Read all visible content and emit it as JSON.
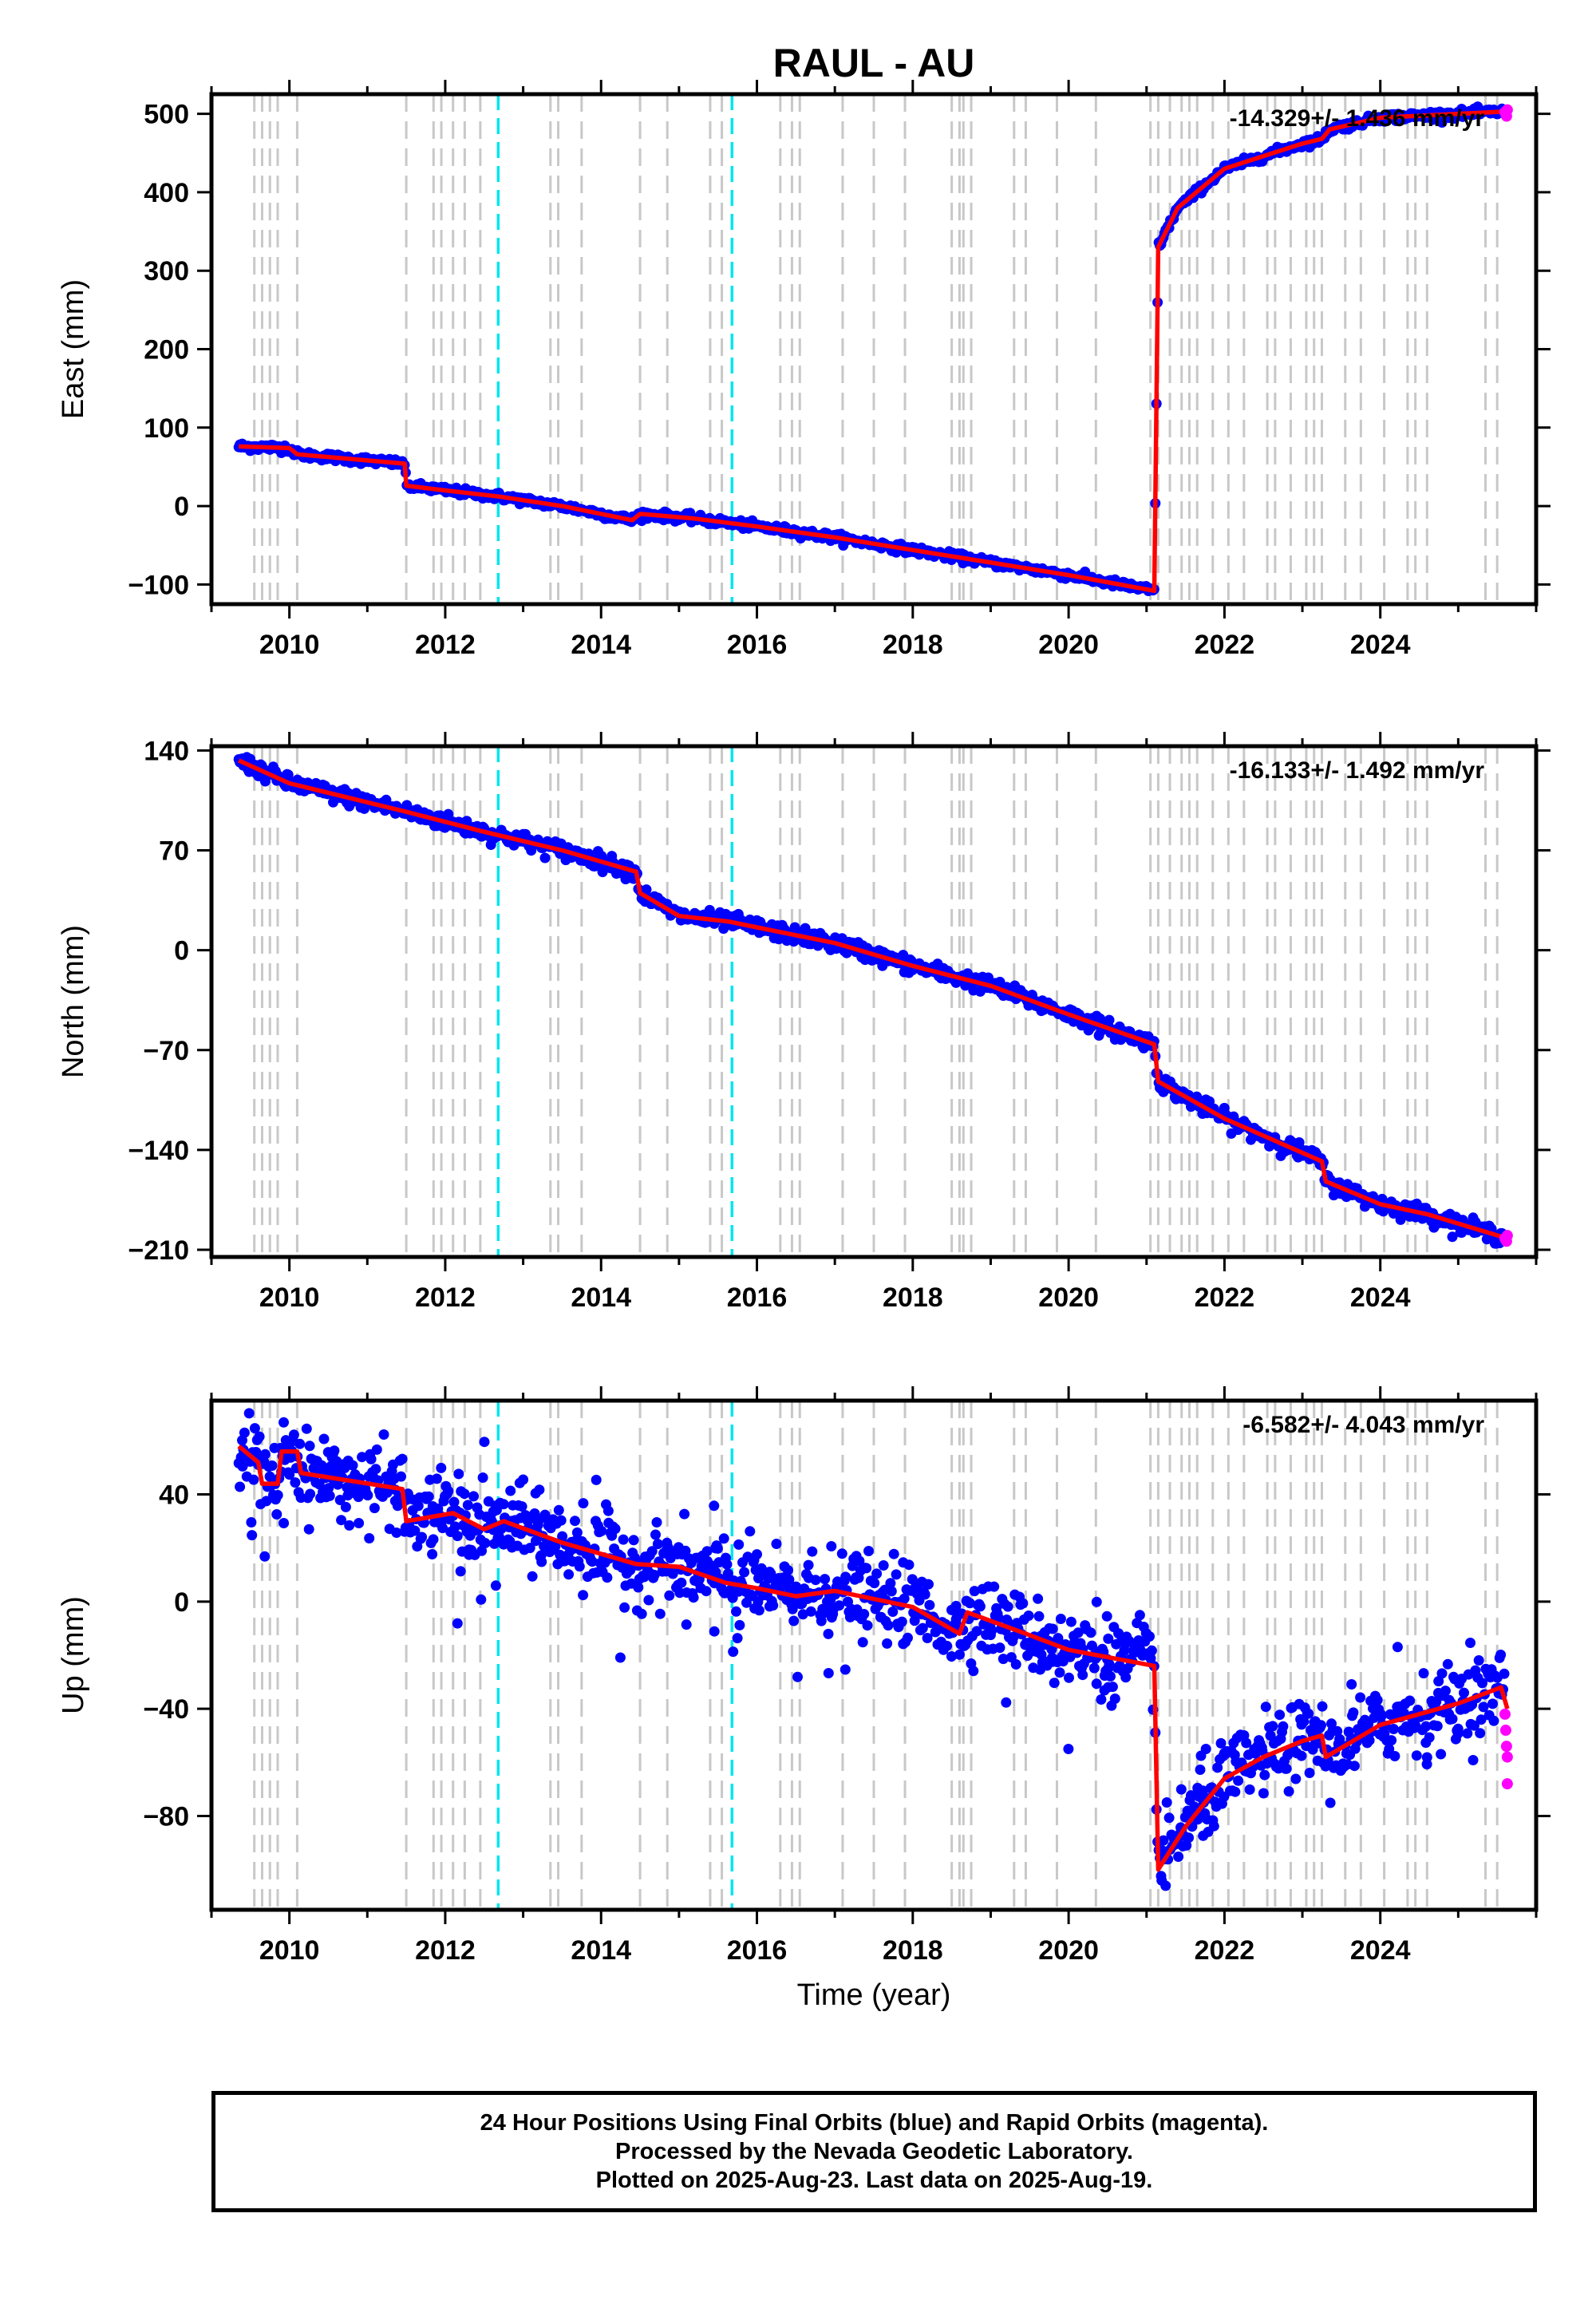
{
  "title": "RAUL - AU",
  "xlabel": "Time (year)",
  "footer": {
    "line1": "24 Hour Positions Using Final Orbits (blue) and Rapid Orbits (magenta).",
    "line2": "Processed by the Nevada Geodetic Laboratory.",
    "line3": "Plotted on 2025-Aug-23. Last data on 2025-Aug-19."
  },
  "colors": {
    "final_orbits": "#0000ff",
    "rapid_orbits": "#ff00ff",
    "model": "#ff0000",
    "equipment_change": "#c8c8c8",
    "earthquake": "#00e5ee"
  },
  "chart_data": {
    "type": "scatter",
    "xlim": [
      2009.0,
      2026.0
    ],
    "xticks": [
      2010,
      2012,
      2014,
      2016,
      2018,
      2020,
      2022,
      2024
    ],
    "xtick_labels": [
      "2010",
      "2012",
      "2014",
      "2016",
      "2018",
      "2020",
      "2022",
      "2024"
    ],
    "data_start": 2009.35,
    "data_end": 2025.63,
    "equipment_change_dates": [
      2009.55,
      2009.65,
      2009.75,
      2009.85,
      2010.1,
      2011.5,
      2011.85,
      2011.95,
      2012.1,
      2012.25,
      2012.45,
      2013.35,
      2013.45,
      2013.75,
      2014.5,
      2014.85,
      2015.4,
      2015.55,
      2016.3,
      2016.45,
      2016.55,
      2017.1,
      2017.5,
      2017.9,
      2018.5,
      2018.6,
      2018.65,
      2018.75,
      2019.3,
      2019.45,
      2019.85,
      2020.35,
      2021.05,
      2021.15,
      2021.3,
      2021.45,
      2021.55,
      2021.65,
      2021.85,
      2022.05,
      2022.25,
      2022.55,
      2022.65,
      2022.85,
      2023.05,
      2023.15,
      2023.25,
      2023.55,
      2023.75,
      2024.05,
      2024.35,
      2024.45,
      2024.6,
      2025.35,
      2025.5
    ],
    "earthquake_dates": [
      2012.68,
      2015.68
    ],
    "panels": [
      {
        "key": "east",
        "ylabel": "East (mm)",
        "ylim": [
          -125,
          525
        ],
        "yticks": [
          -100,
          0,
          100,
          200,
          300,
          400,
          500
        ],
        "ytick_labels": [
          "−100",
          "0",
          "100",
          "200",
          "300",
          "400",
          "500"
        ],
        "rate_label": "-14.329+/- 1.436 mm/yr",
        "noise": 2.5,
        "model": [
          [
            2009.35,
            76
          ],
          [
            2010.0,
            74
          ],
          [
            2010.1,
            66
          ],
          [
            2011.48,
            54
          ],
          [
            2011.5,
            26
          ],
          [
            2012.0,
            20
          ],
          [
            2012.7,
            12
          ],
          [
            2013.5,
            0
          ],
          [
            2014.4,
            -18
          ],
          [
            2014.5,
            -10
          ],
          [
            2015.2,
            -16
          ],
          [
            2016.0,
            -26
          ],
          [
            2017.0,
            -40
          ],
          [
            2018.0,
            -56
          ],
          [
            2019.0,
            -72
          ],
          [
            2020.0,
            -88
          ],
          [
            2021.1,
            -108
          ],
          [
            2021.15,
            330
          ],
          [
            2021.4,
            380
          ],
          [
            2022.0,
            430
          ],
          [
            2023.0,
            462
          ],
          [
            2023.25,
            468
          ],
          [
            2023.35,
            480
          ],
          [
            2024.0,
            495
          ],
          [
            2025.0,
            500
          ],
          [
            2025.63,
            503
          ]
        ],
        "rapid": [
          [
            2025.6,
            502
          ],
          [
            2025.62,
            497
          ],
          [
            2025.63,
            505
          ]
        ]
      },
      {
        "key": "north",
        "ylabel": "North (mm)",
        "ylim": [
          -215,
          143
        ],
        "yticks": [
          -210,
          -140,
          -70,
          0,
          70,
          140
        ],
        "ytick_labels": [
          "−210",
          "−140",
          "−70",
          "0",
          "70",
          "140"
        ],
        "rate_label": "-16.133+/- 1.492 mm/yr",
        "noise": 2.8,
        "model": [
          [
            2009.35,
            133
          ],
          [
            2010.0,
            117
          ],
          [
            2011.5,
            97
          ],
          [
            2012.5,
            83
          ],
          [
            2013.5,
            70
          ],
          [
            2014.45,
            55
          ],
          [
            2014.5,
            40
          ],
          [
            2015.0,
            24
          ],
          [
            2015.65,
            20
          ],
          [
            2016.0,
            16
          ],
          [
            2017.0,
            5
          ],
          [
            2018.0,
            -11
          ],
          [
            2019.0,
            -25
          ],
          [
            2020.0,
            -45
          ],
          [
            2021.1,
            -66
          ],
          [
            2021.15,
            -92
          ],
          [
            2022.0,
            -118
          ],
          [
            2023.25,
            -148
          ],
          [
            2023.3,
            -162
          ],
          [
            2024.0,
            -178
          ],
          [
            2024.6,
            -185
          ],
          [
            2025.63,
            -202
          ]
        ],
        "rapid": [
          [
            2025.6,
            -202
          ],
          [
            2025.62,
            -204
          ],
          [
            2025.63,
            -200
          ]
        ]
      },
      {
        "key": "up",
        "ylabel": "Up (mm)",
        "ylim": [
          -115,
          75
        ],
        "yticks": [
          -80,
          -40,
          0,
          40
        ],
        "ytick_labels": [
          "−80",
          "−40",
          "0",
          "40"
        ],
        "rate_label": "-6.582+/- 4.043 mm/yr",
        "noise": 7,
        "model": [
          [
            2009.35,
            58
          ],
          [
            2009.6,
            52
          ],
          [
            2009.65,
            44
          ],
          [
            2009.85,
            44
          ],
          [
            2009.9,
            56
          ],
          [
            2010.1,
            56
          ],
          [
            2010.15,
            48
          ],
          [
            2011.45,
            42
          ],
          [
            2011.5,
            30
          ],
          [
            2012.1,
            33
          ],
          [
            2012.5,
            27
          ],
          [
            2012.75,
            30
          ],
          [
            2013.5,
            22
          ],
          [
            2014.45,
            14
          ],
          [
            2015.0,
            13
          ],
          [
            2015.6,
            7
          ],
          [
            2016.0,
            5
          ],
          [
            2016.5,
            2
          ],
          [
            2017.0,
            4
          ],
          [
            2018.0,
            -2
          ],
          [
            2018.6,
            -12
          ],
          [
            2018.7,
            -4
          ],
          [
            2019.45,
            -12
          ],
          [
            2020.0,
            -18
          ],
          [
            2021.1,
            -24
          ],
          [
            2021.15,
            -100
          ],
          [
            2021.5,
            -84
          ],
          [
            2022.0,
            -66
          ],
          [
            2022.5,
            -58
          ],
          [
            2023.0,
            -52
          ],
          [
            2023.25,
            -50
          ],
          [
            2023.3,
            -58
          ],
          [
            2024.0,
            -46
          ],
          [
            2025.0,
            -38
          ],
          [
            2025.55,
            -32
          ],
          [
            2025.63,
            -40
          ]
        ],
        "rapid": [
          [
            2025.6,
            -42
          ],
          [
            2025.61,
            -48
          ],
          [
            2025.62,
            -54
          ],
          [
            2025.63,
            -58
          ],
          [
            2025.63,
            -68
          ]
        ]
      }
    ]
  }
}
